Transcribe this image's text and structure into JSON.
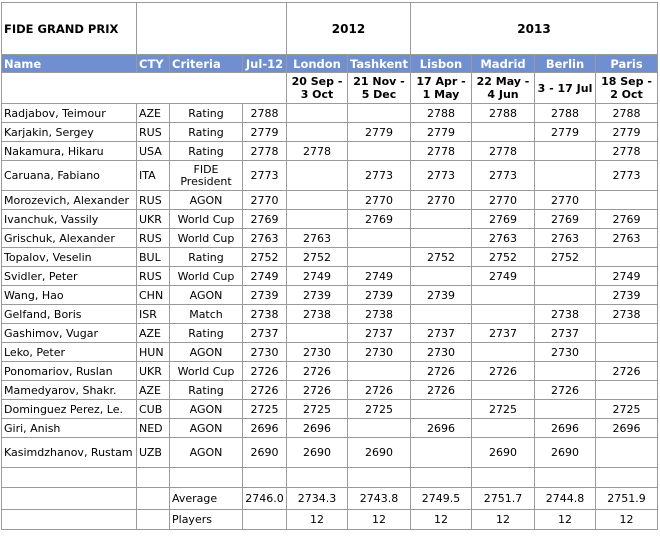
{
  "title": "FIDE GRAND PRIX",
  "years": [
    "2012",
    "2013"
  ],
  "columns": {
    "name": "Name",
    "cty": "CTY",
    "criteria": "Criteria",
    "jul12": "Jul-12",
    "london": "London",
    "tashkent": "Tashkent",
    "lisbon": "Lisbon",
    "madrid": "Madrid",
    "berlin": "Berlin",
    "paris": "Paris"
  },
  "dates": {
    "london": "20 Sep - 3 Oct",
    "tashkent": "21 Nov - 5 Dec",
    "lisbon": "17 Apr - 1 May",
    "madrid": "22 May - 4 Jun",
    "berlin": "3 - 17 Jul",
    "paris": "18 Sep - 2 Oct"
  },
  "rows": [
    {
      "name": "Radjabov, Teimour",
      "cty": "AZE",
      "criteria": "Rating",
      "jul12": "2788",
      "london": "",
      "tashkent": "",
      "lisbon": "2788",
      "madrid": "2788",
      "berlin": "2788",
      "paris": "2788"
    },
    {
      "name": "Karjakin, Sergey",
      "cty": "RUS",
      "criteria": "Rating",
      "jul12": "2779",
      "london": "",
      "tashkent": "2779",
      "lisbon": "2779",
      "madrid": "",
      "berlin": "2779",
      "paris": "2779"
    },
    {
      "name": "Nakamura, Hikaru",
      "cty": "USA",
      "criteria": "Rating",
      "jul12": "2778",
      "london": "2778",
      "tashkent": "",
      "lisbon": "2778",
      "madrid": "2778",
      "berlin": "",
      "paris": "2778"
    },
    {
      "name": "Caruana, Fabiano",
      "cty": "ITA",
      "criteria": "FIDE President",
      "jul12": "2773",
      "london": "",
      "tashkent": "2773",
      "lisbon": "2773",
      "madrid": "2773",
      "berlin": "",
      "paris": "2773"
    },
    {
      "name": "Morozevich, Alexander",
      "cty": "RUS",
      "criteria": "AGON",
      "jul12": "2770",
      "london": "",
      "tashkent": "2770",
      "lisbon": "2770",
      "madrid": "2770",
      "berlin": "2770",
      "paris": ""
    },
    {
      "name": "Ivanchuk, Vassily",
      "cty": "UKR",
      "criteria": "World Cup",
      "jul12": "2769",
      "london": "",
      "tashkent": "2769",
      "lisbon": "",
      "madrid": "2769",
      "berlin": "2769",
      "paris": "2769"
    },
    {
      "name": "Grischuk, Alexander",
      "cty": "RUS",
      "criteria": "World Cup",
      "jul12": "2763",
      "london": "2763",
      "tashkent": "",
      "lisbon": "",
      "madrid": "2763",
      "berlin": "2763",
      "paris": "2763"
    },
    {
      "name": "Topalov, Veselin",
      "cty": "BUL",
      "criteria": "Rating",
      "jul12": "2752",
      "london": "2752",
      "tashkent": "",
      "lisbon": "2752",
      "madrid": "2752",
      "berlin": "2752",
      "paris": ""
    },
    {
      "name": "Svidler, Peter",
      "cty": "RUS",
      "criteria": "World Cup",
      "jul12": "2749",
      "london": "2749",
      "tashkent": "2749",
      "lisbon": "",
      "madrid": "2749",
      "berlin": "",
      "paris": "2749"
    },
    {
      "name": "Wang, Hao",
      "cty": "CHN",
      "criteria": "AGON",
      "jul12": "2739",
      "london": "2739",
      "tashkent": "2739",
      "lisbon": "2739",
      "madrid": "",
      "berlin": "",
      "paris": "2739"
    },
    {
      "name": "Gelfand, Boris",
      "cty": "ISR",
      "criteria": "Match",
      "jul12": "2738",
      "london": "2738",
      "tashkent": "2738",
      "lisbon": "",
      "madrid": "",
      "berlin": "2738",
      "paris": "2738"
    },
    {
      "name": "Gashimov, Vugar",
      "cty": "AZE",
      "criteria": "Rating",
      "jul12": "2737",
      "london": "",
      "tashkent": "2737",
      "lisbon": "2737",
      "madrid": "2737",
      "berlin": "2737",
      "paris": ""
    },
    {
      "name": "Leko, Peter",
      "cty": "HUN",
      "criteria": "AGON",
      "jul12": "2730",
      "london": "2730",
      "tashkent": "2730",
      "lisbon": "2730",
      "madrid": "",
      "berlin": "2730",
      "paris": ""
    },
    {
      "name": "Ponomariov, Ruslan",
      "cty": "UKR",
      "criteria": "World Cup",
      "jul12": "2726",
      "london": "2726",
      "tashkent": "",
      "lisbon": "2726",
      "madrid": "2726",
      "berlin": "",
      "paris": "2726"
    },
    {
      "name": "Mamedyarov, Shakr.",
      "cty": "AZE",
      "criteria": "Rating",
      "jul12": "2726",
      "london": "2726",
      "tashkent": "2726",
      "lisbon": "2726",
      "madrid": "",
      "berlin": "2726",
      "paris": ""
    },
    {
      "name": "Dominguez Perez, Le.",
      "cty": "CUB",
      "criteria": "AGON",
      "jul12": "2725",
      "london": "2725",
      "tashkent": "2725",
      "lisbon": "",
      "madrid": "2725",
      "berlin": "",
      "paris": "2725"
    },
    {
      "name": "Giri, Anish",
      "cty": "NED",
      "criteria": "AGON",
      "jul12": "2696",
      "london": "2696",
      "tashkent": "",
      "lisbon": "2696",
      "madrid": "",
      "berlin": "2696",
      "paris": "2696"
    },
    {
      "name": "Kasimdzhanov, Rustam",
      "cty": "UZB",
      "criteria": "AGON",
      "jul12": "2690",
      "london": "2690",
      "tashkent": "2690",
      "lisbon": "",
      "madrid": "2690",
      "berlin": "2690",
      "paris": ""
    }
  ],
  "summary": {
    "average_label": "Average",
    "average": {
      "jul12": "2746.0",
      "london": "2734.3",
      "tashkent": "2743.8",
      "lisbon": "2749.5",
      "madrid": "2751.7",
      "berlin": "2744.8",
      "paris": "2751.9"
    },
    "players_label": "Players",
    "players": {
      "jul12": "",
      "london": "12",
      "tashkent": "12",
      "lisbon": "12",
      "madrid": "12",
      "berlin": "12",
      "paris": "12"
    }
  }
}
